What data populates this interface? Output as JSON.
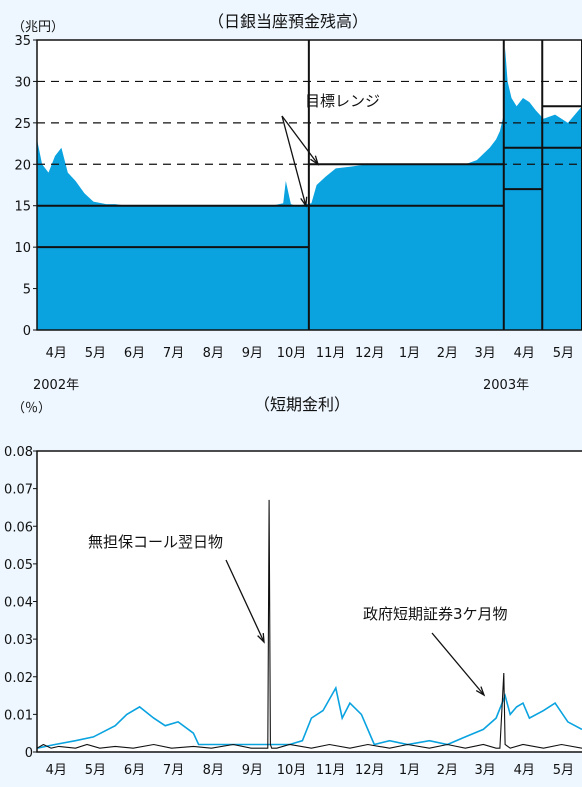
{
  "chart_data": [
    {
      "type": "area",
      "title": "（日銀当座預金残高）",
      "unit_label": "（兆円）",
      "ylim": [
        0,
        35
      ],
      "yticks": [
        0,
        5,
        10,
        15,
        20,
        25,
        30,
        35
      ],
      "dashed_grid": [
        20,
        25,
        30
      ],
      "x_range": [
        "2002-04-01",
        "2003-05-31"
      ],
      "month_labels": [
        "4月",
        "5月",
        "6月",
        "7月",
        "8月",
        "9月",
        "10月",
        "11月",
        "12月",
        "1月",
        "2月",
        "3月",
        "4月",
        "5月"
      ],
      "year_labels": [
        "2002年",
        "2003年"
      ],
      "annotation": "目標レンジ",
      "fill_color": "#0aa3e0",
      "series": [
        {
          "x": [
            "2002-04-01",
            "2002-04-05",
            "2002-04-10",
            "2002-04-15",
            "2002-04-20",
            "2002-04-25",
            "2002-05-01",
            "2002-05-08",
            "2002-05-15",
            "2002-05-25",
            "2002-06-01",
            "2002-06-10",
            "2002-06-20",
            "2002-07-01",
            "2002-07-15",
            "2002-08-01",
            "2002-08-15",
            "2002-09-01",
            "2002-09-15",
            "2002-10-01",
            "2002-10-10",
            "2002-10-12",
            "2002-10-16",
            "2002-10-20",
            "2002-10-28",
            "2002-11-01",
            "2002-11-05",
            "2002-11-12",
            "2002-11-20",
            "2002-12-01",
            "2002-12-15",
            "2003-01-01",
            "2003-01-15",
            "2003-02-01",
            "2003-02-15",
            "2003-03-01",
            "2003-03-10",
            "2003-03-20",
            "2003-03-25",
            "2003-03-28",
            "2003-03-31",
            "2003-04-01",
            "2003-04-03",
            "2003-04-06",
            "2003-04-10",
            "2003-04-15",
            "2003-04-20",
            "2003-04-25",
            "2003-05-01",
            "2003-05-10",
            "2003-05-20",
            "2003-05-31"
          ],
          "values": [
            23,
            20,
            19,
            21,
            22,
            19,
            18,
            16.5,
            15.5,
            15.2,
            15.2,
            15,
            15,
            15,
            15,
            15,
            15,
            15,
            15,
            15,
            15.3,
            18,
            15.2,
            15,
            15.2,
            15.3,
            17.5,
            18.5,
            19.5,
            19.7,
            20,
            20,
            20,
            20,
            20,
            20,
            20.5,
            22,
            23,
            24,
            26,
            34,
            30,
            28,
            27,
            28,
            27.5,
            26.5,
            25.5,
            26,
            25,
            27
          ]
        }
      ],
      "target_ranges": [
        {
          "from": "2002-04-01",
          "to": "2002-10-30",
          "low": 10,
          "high": 15
        },
        {
          "from": "2002-10-30",
          "to": "2003-03-31",
          "low": 15,
          "high": 20
        },
        {
          "from": "2003-03-31",
          "to": "2003-04-30",
          "low": 17,
          "high": 22
        },
        {
          "from": "2003-04-30",
          "to": "2003-05-31",
          "low": 22,
          "high": 27
        }
      ]
    },
    {
      "type": "line",
      "title": "（短期金利）",
      "unit_label": "（％）",
      "ylim": [
        0,
        0.08
      ],
      "yticks": [
        0,
        0.01,
        0.02,
        0.03,
        0.04,
        0.05,
        0.06,
        0.07,
        0.08
      ],
      "ytick_labels": [
        "0",
        "0.01",
        "0.02",
        "0.03",
        "0.04",
        "0.05",
        "0.06",
        "0.07",
        "0.08"
      ],
      "x_range": [
        "2002-04-01",
        "2003-05-31"
      ],
      "month_labels": [
        "4月",
        "5月",
        "6月",
        "7月",
        "8月",
        "9月",
        "10月",
        "11月",
        "12月",
        "1月",
        "2月",
        "3月",
        "4月",
        "5月"
      ],
      "series": [
        {
          "name": "無担保コール翌日物",
          "color": "#111111",
          "x": [
            "2002-04-01",
            "2002-04-06",
            "2002-04-12",
            "2002-04-18",
            "2002-05-01",
            "2002-05-10",
            "2002-05-20",
            "2002-06-01",
            "2002-06-15",
            "2002-07-01",
            "2002-07-15",
            "2002-08-01",
            "2002-08-15",
            "2002-09-01",
            "2002-09-15",
            "2002-09-25",
            "2002-09-28",
            "2002-09-29",
            "2002-09-30",
            "2002-10-01",
            "2002-10-05",
            "2002-10-15",
            "2002-11-01",
            "2002-11-15",
            "2002-12-01",
            "2002-12-15",
            "2003-01-01",
            "2003-01-15",
            "2003-02-01",
            "2003-02-15",
            "2003-03-01",
            "2003-03-15",
            "2003-03-25",
            "2003-03-28",
            "2003-03-31",
            "2003-04-01",
            "2003-04-05",
            "2003-04-15",
            "2003-05-01",
            "2003-05-15",
            "2003-05-31"
          ],
          "values": [
            0.001,
            0.002,
            0.001,
            0.0015,
            0.001,
            0.002,
            0.001,
            0.0015,
            0.001,
            0.002,
            0.001,
            0.0015,
            0.001,
            0.002,
            0.001,
            0.001,
            0.001,
            0.067,
            0.002,
            0.001,
            0.001,
            0.002,
            0.001,
            0.002,
            0.001,
            0.002,
            0.001,
            0.002,
            0.001,
            0.002,
            0.001,
            0.002,
            0.001,
            0.001,
            0.021,
            0.002,
            0.001,
            0.002,
            0.001,
            0.002,
            0.001
          ]
        },
        {
          "name": "政府短期証券3ケ月物",
          "color": "#0aa3e0",
          "x": [
            "2002-04-01",
            "2002-04-15",
            "2002-05-01",
            "2002-05-15",
            "2002-06-01",
            "2002-06-10",
            "2002-06-20",
            "2002-07-01",
            "2002-07-10",
            "2002-07-20",
            "2002-08-01",
            "2002-08-05",
            "2002-08-15",
            "2002-09-01",
            "2002-09-15",
            "2002-10-01",
            "2002-10-15",
            "2002-10-25",
            "2002-11-01",
            "2002-11-10",
            "2002-11-20",
            "2002-11-25",
            "2002-12-01",
            "2002-12-10",
            "2002-12-20",
            "2003-01-01",
            "2003-01-15",
            "2003-02-01",
            "2003-02-15",
            "2003-03-01",
            "2003-03-15",
            "2003-03-25",
            "2003-04-01",
            "2003-04-05",
            "2003-04-10",
            "2003-04-15",
            "2003-04-20",
            "2003-05-01",
            "2003-05-10",
            "2003-05-20",
            "2003-05-31"
          ],
          "values": [
            0.001,
            0.002,
            0.003,
            0.004,
            0.007,
            0.01,
            0.012,
            0.009,
            0.007,
            0.008,
            0.005,
            0.002,
            0.002,
            0.002,
            0.002,
            0.002,
            0.002,
            0.003,
            0.009,
            0.011,
            0.017,
            0.009,
            0.013,
            0.01,
            0.002,
            0.003,
            0.002,
            0.003,
            0.002,
            0.004,
            0.006,
            0.009,
            0.015,
            0.01,
            0.012,
            0.013,
            0.009,
            0.011,
            0.013,
            0.008,
            0.006
          ]
        }
      ]
    }
  ]
}
